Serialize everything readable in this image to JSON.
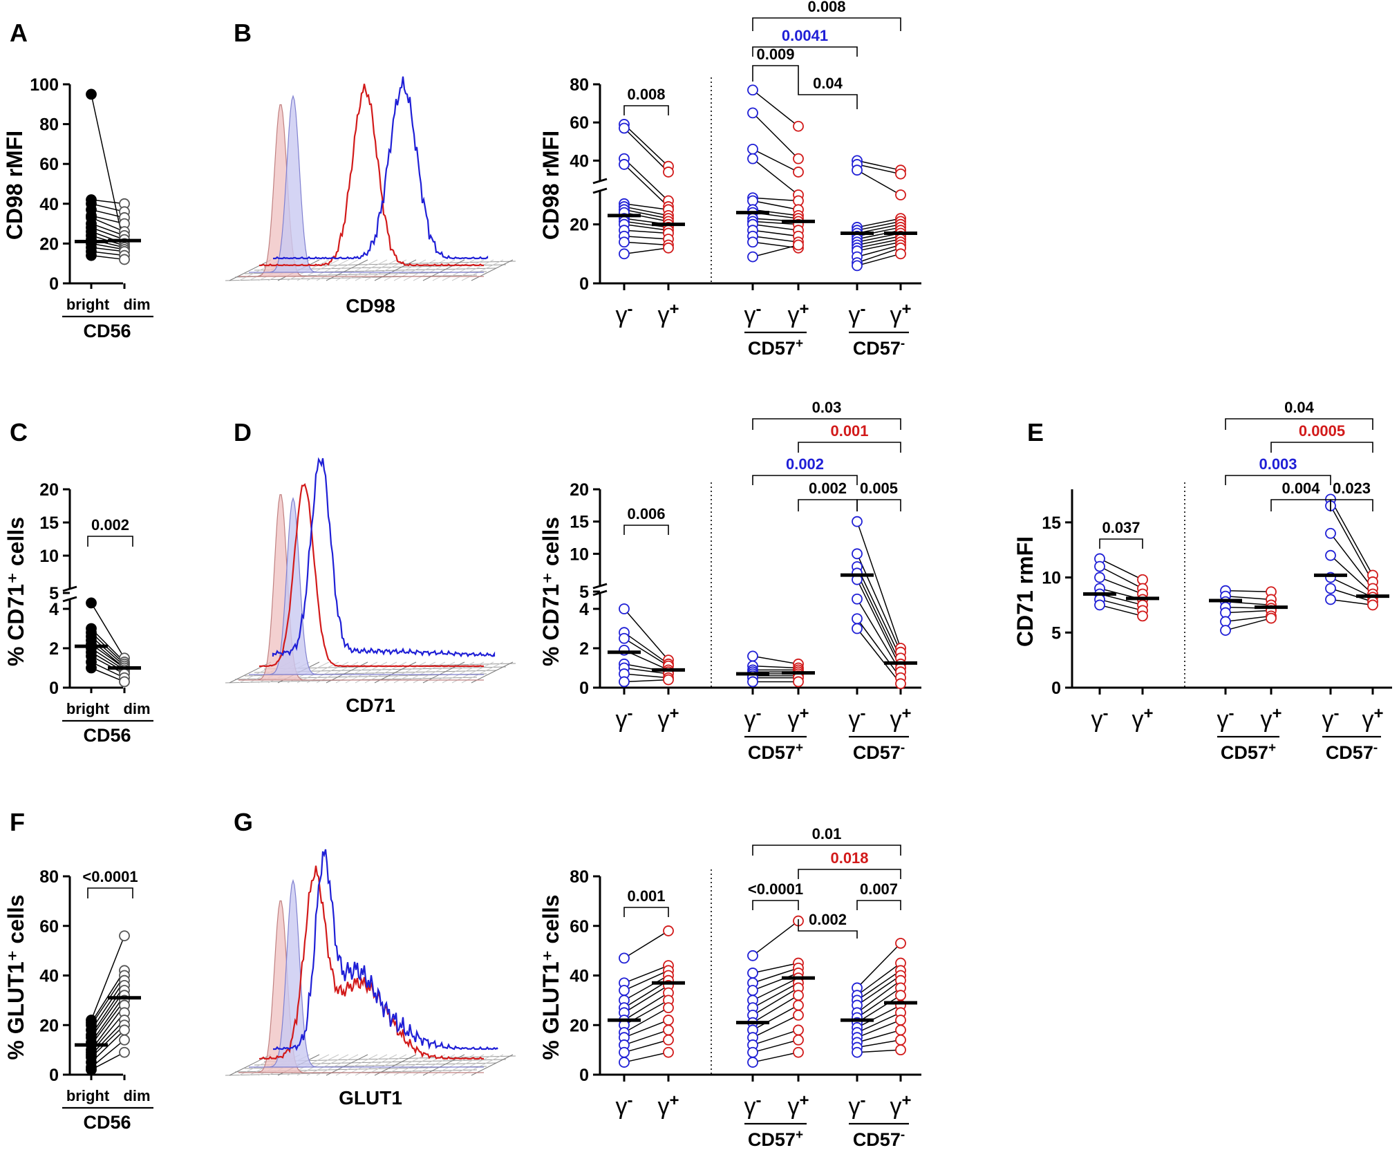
{
  "colors": {
    "blue": "#1f1fd6",
    "red": "#d21a1a",
    "black": "#000000",
    "red_fill": "#f0c4c4",
    "blue_fill": "#c9c9f1"
  },
  "labels": {
    "cd56": "CD56",
    "bright": "bright",
    "dim": "dim",
    "gamma": "γ",
    "minus": "-",
    "plus": "+",
    "cd57": "CD57",
    "hist_cd98": "CD98",
    "hist_cd71": "CD71",
    "hist_glut1": "GLUT1"
  },
  "chart_data": [
    {
      "id": "A",
      "panel": "A",
      "type": "scatter",
      "ylabel": "CD98 rMFI",
      "ylim": [
        0,
        100
      ],
      "yticks": [
        0,
        20,
        40,
        60,
        80,
        100
      ],
      "categories": [
        "bright",
        "dim"
      ],
      "pairs": [
        [
          95,
          18
        ],
        [
          42,
          40
        ],
        [
          40,
          36
        ],
        [
          37,
          33
        ],
        [
          34,
          30
        ],
        [
          33,
          26
        ],
        [
          30,
          24
        ],
        [
          28,
          22
        ],
        [
          26,
          20
        ],
        [
          24,
          19
        ],
        [
          22,
          18
        ],
        [
          20,
          17
        ],
        [
          18,
          16
        ],
        [
          16,
          14
        ],
        [
          14,
          12
        ]
      ],
      "medians": [
        21,
        21.5
      ],
      "pvalues": []
    },
    {
      "id": "B",
      "panel": "B",
      "type": "scatter",
      "ylabel": "CD98 rMFI",
      "axis_break": true,
      "ylim": [
        0,
        80
      ],
      "yticks": [
        0,
        20,
        40,
        60,
        80
      ],
      "groups": [
        {
          "name": "γ-/γ+",
          "pairs": [
            [
              59,
              37
            ],
            [
              57,
              34
            ],
            [
              41,
              28
            ],
            [
              38,
              26
            ],
            [
              27,
              25
            ],
            [
              26,
              23
            ],
            [
              25,
              22
            ],
            [
              24,
              21
            ],
            [
              22,
              20
            ],
            [
              21,
              19
            ],
            [
              20,
              18
            ],
            [
              18,
              17
            ],
            [
              16,
              15
            ],
            [
              14,
              13
            ],
            [
              10,
              12
            ]
          ],
          "medians": [
            23,
            20
          ]
        },
        {
          "name": "CD57+",
          "pairs": [
            [
              77,
              58
            ],
            [
              65,
              41
            ],
            [
              46,
              34
            ],
            [
              41,
              30
            ],
            [
              29,
              28
            ],
            [
              28,
              25
            ],
            [
              25,
              23
            ],
            [
              24,
              22
            ],
            [
              22,
              21
            ],
            [
              21,
              20
            ],
            [
              20,
              18
            ],
            [
              18,
              16
            ],
            [
              16,
              14
            ],
            [
              14,
              12
            ],
            [
              9,
              13
            ]
          ],
          "medians": [
            24,
            21
          ]
        },
        {
          "name": "CD57-",
          "pairs": [
            [
              40,
              35
            ],
            [
              38,
              33
            ],
            [
              35,
              30
            ],
            [
              19,
              22
            ],
            [
              18,
              21
            ],
            [
              17,
              20
            ],
            [
              16,
              19
            ],
            [
              15,
              18
            ],
            [
              14,
              17
            ],
            [
              13,
              16
            ],
            [
              12,
              15
            ],
            [
              11,
              14
            ],
            [
              9,
              13
            ],
            [
              7,
              12
            ],
            [
              6,
              10
            ]
          ],
          "medians": [
            17,
            17
          ]
        }
      ],
      "pvalues": [
        {
          "text": "0.008",
          "from": 0,
          "to": 1,
          "color": "black"
        },
        {
          "text": "0.009",
          "from": 2,
          "to": 3,
          "color": "black"
        },
        {
          "text": "0.04",
          "from": 3,
          "to": 4,
          "color": "black"
        },
        {
          "text": "0.0041",
          "from": 2,
          "to": 4,
          "color": "blue"
        },
        {
          "text": "0.008",
          "from": 2,
          "to": 5,
          "color": "black"
        }
      ]
    },
    {
      "id": "C",
      "panel": "C",
      "type": "scatter",
      "ylabel": "% CD71⁺ cells",
      "axis_break": true,
      "yticks": [
        0,
        2,
        4,
        5,
        10,
        15,
        20
      ],
      "categories": [
        "bright",
        "dim"
      ],
      "pairs": [
        [
          4.3,
          1.5
        ],
        [
          3.0,
          1.3
        ],
        [
          2.8,
          1.2
        ],
        [
          2.6,
          1.1
        ],
        [
          2.4,
          1.0
        ],
        [
          2.2,
          1.0
        ],
        [
          2.0,
          0.9
        ],
        [
          1.8,
          0.8
        ],
        [
          1.6,
          0.7
        ],
        [
          1.3,
          0.5
        ],
        [
          1.0,
          0.3
        ]
      ],
      "medians": [
        2.1,
        1.0
      ],
      "pvalues": [
        {
          "text": "0.002",
          "from": 0,
          "to": 1,
          "color": "black"
        }
      ]
    },
    {
      "id": "D",
      "panel": "D",
      "type": "scatter",
      "ylabel": "% CD71⁺ cells",
      "axis_break": true,
      "yticks": [
        0,
        2,
        4,
        5,
        10,
        15,
        20
      ],
      "groups": [
        {
          "name": "γ-/γ+",
          "pairs": [
            [
              4.0,
              1.4
            ],
            [
              2.8,
              1.2
            ],
            [
              2.5,
              1.1
            ],
            [
              1.9,
              0.9
            ],
            [
              1.2,
              0.8
            ],
            [
              1.0,
              0.7
            ],
            [
              0.7,
              0.5
            ],
            [
              0.3,
              0.4
            ]
          ],
          "medians": [
            1.8,
            0.9
          ]
        },
        {
          "name": "CD57+",
          "pairs": [
            [
              1.6,
              1.2
            ],
            [
              1.1,
              1.0
            ],
            [
              0.9,
              0.9
            ],
            [
              0.8,
              0.8
            ],
            [
              0.7,
              0.7
            ],
            [
              0.6,
              0.6
            ],
            [
              0.5,
              0.5
            ],
            [
              0.3,
              0.3
            ]
          ],
          "medians": [
            0.7,
            0.75
          ]
        },
        {
          "name": "CD57-",
          "pairs": [
            [
              15.0,
              2.0
            ],
            [
              10.0,
              1.8
            ],
            [
              8.0,
              1.5
            ],
            [
              7.0,
              1.2
            ],
            [
              6.0,
              1.0
            ],
            [
              4.5,
              0.8
            ],
            [
              3.5,
              0.5
            ],
            [
              3.0,
              0.2
            ]
          ],
          "medians": [
            6.7,
            1.25
          ]
        }
      ],
      "pvalues": [
        {
          "text": "0.006",
          "from": 0,
          "to": 1,
          "color": "black"
        },
        {
          "text": "0.002",
          "from": 3,
          "to": 4,
          "color": "black"
        },
        {
          "text": "0.005",
          "from": 4,
          "to": 5,
          "color": "black"
        },
        {
          "text": "0.002",
          "from": 2,
          "to": 4,
          "color": "blue"
        },
        {
          "text": "0.001",
          "from": 3,
          "to": 5,
          "color": "red"
        },
        {
          "text": "0.03",
          "from": 2,
          "to": 5,
          "color": "black"
        }
      ]
    },
    {
      "id": "E",
      "panel": "E",
      "type": "scatter",
      "ylabel": "CD71 rmFI",
      "ylim": [
        0,
        18
      ],
      "yticks": [
        0,
        5,
        10,
        15
      ],
      "groups": [
        {
          "name": "γ-/γ+",
          "pairs": [
            [
              11.7,
              9.8
            ],
            [
              11.0,
              9.0
            ],
            [
              10.0,
              8.5
            ],
            [
              9.0,
              8.0
            ],
            [
              8.5,
              7.5
            ],
            [
              8.0,
              7.0
            ],
            [
              7.5,
              6.5
            ]
          ],
          "medians": [
            8.5,
            8.1
          ]
        },
        {
          "name": "CD57+",
          "pairs": [
            [
              8.8,
              8.7
            ],
            [
              8.3,
              8.0
            ],
            [
              7.8,
              7.5
            ],
            [
              7.3,
              7.2
            ],
            [
              6.8,
              7.0
            ],
            [
              6.0,
              6.5
            ],
            [
              5.2,
              6.3
            ]
          ],
          "medians": [
            7.9,
            7.3
          ]
        },
        {
          "name": "CD57-",
          "pairs": [
            [
              17.1,
              10.2
            ],
            [
              16.5,
              9.6
            ],
            [
              14.0,
              9.0
            ],
            [
              12.0,
              8.5
            ],
            [
              10.0,
              8.2
            ],
            [
              9.0,
              7.8
            ],
            [
              8.0,
              7.5
            ]
          ],
          "medians": [
            10.2,
            8.3
          ]
        }
      ],
      "pvalues": [
        {
          "text": "0.037",
          "from": 0,
          "to": 1,
          "color": "black"
        },
        {
          "text": "0.004",
          "from": 3,
          "to": 4,
          "color": "black"
        },
        {
          "text": "0.023",
          "from": 4,
          "to": 5,
          "color": "black"
        },
        {
          "text": "0.003",
          "from": 2,
          "to": 4,
          "color": "blue"
        },
        {
          "text": "0.0005",
          "from": 3,
          "to": 5,
          "color": "red"
        },
        {
          "text": "0.04",
          "from": 2,
          "to": 5,
          "color": "black"
        }
      ]
    },
    {
      "id": "F",
      "panel": "F",
      "type": "scatter",
      "ylabel": "% GLUT1⁺ cells",
      "ylim": [
        0,
        80
      ],
      "yticks": [
        0,
        20,
        40,
        60,
        80
      ],
      "categories": [
        "bright",
        "dim"
      ],
      "pairs": [
        [
          22,
          56
        ],
        [
          21,
          42
        ],
        [
          20,
          40
        ],
        [
          18,
          38
        ],
        [
          16,
          36
        ],
        [
          15,
          34
        ],
        [
          13,
          32
        ],
        [
          12,
          30
        ],
        [
          10,
          28
        ],
        [
          9,
          25
        ],
        [
          8,
          22
        ],
        [
          7,
          20
        ],
        [
          5,
          18
        ],
        [
          3,
          14
        ],
        [
          2,
          9
        ]
      ],
      "medians": [
        12,
        31
      ],
      "pvalues": [
        {
          "text": "<0.0001",
          "from": 0,
          "to": 1,
          "color": "black"
        }
      ]
    },
    {
      "id": "G",
      "panel": "G",
      "type": "scatter",
      "ylabel": "% GLUT1⁺ cells",
      "ylim": [
        0,
        80
      ],
      "yticks": [
        0,
        20,
        40,
        60,
        80
      ],
      "groups": [
        {
          "name": "γ-/γ+",
          "pairs": [
            [
              47,
              58
            ],
            [
              37,
              44
            ],
            [
              34,
              42
            ],
            [
              30,
              40
            ],
            [
              27,
              38
            ],
            [
              25,
              36
            ],
            [
              22,
              33
            ],
            [
              20,
              30
            ],
            [
              17,
              27
            ],
            [
              15,
              22
            ],
            [
              12,
              18
            ],
            [
              9,
              14
            ],
            [
              5,
              9
            ]
          ],
          "medians": [
            22,
            37
          ]
        },
        {
          "name": "CD57+",
          "pairs": [
            [
              48,
              62
            ],
            [
              41,
              45
            ],
            [
              37,
              43
            ],
            [
              34,
              41
            ],
            [
              30,
              39
            ],
            [
              27,
              37
            ],
            [
              24,
              35
            ],
            [
              21,
              32
            ],
            [
              18,
              28
            ],
            [
              15,
              24
            ],
            [
              12,
              18
            ],
            [
              9,
              14
            ],
            [
              5,
              9
            ]
          ],
          "medians": [
            21,
            39
          ]
        },
        {
          "name": "CD57-",
          "pairs": [
            [
              35,
              53
            ],
            [
              32,
              45
            ],
            [
              30,
              42
            ],
            [
              28,
              40
            ],
            [
              25,
              38
            ],
            [
              23,
              35
            ],
            [
              21,
              32
            ],
            [
              19,
              28
            ],
            [
              17,
              25
            ],
            [
              15,
              22
            ],
            [
              13,
              18
            ],
            [
              11,
              14
            ],
            [
              9,
              10
            ]
          ],
          "medians": [
            22,
            29
          ]
        }
      ],
      "pvalues": [
        {
          "text": "0.001",
          "from": 0,
          "to": 1,
          "color": "black"
        },
        {
          "text": "<0.0001",
          "from": 2,
          "to": 3,
          "color": "black"
        },
        {
          "text": "0.002",
          "from": 3,
          "to": 4,
          "color": "black"
        },
        {
          "text": "0.007",
          "from": 4,
          "to": 5,
          "color": "black"
        },
        {
          "text": "0.018",
          "from": 3,
          "to": 5,
          "color": "red"
        },
        {
          "text": "0.01",
          "from": 2,
          "to": 5,
          "color": "black"
        }
      ]
    }
  ]
}
